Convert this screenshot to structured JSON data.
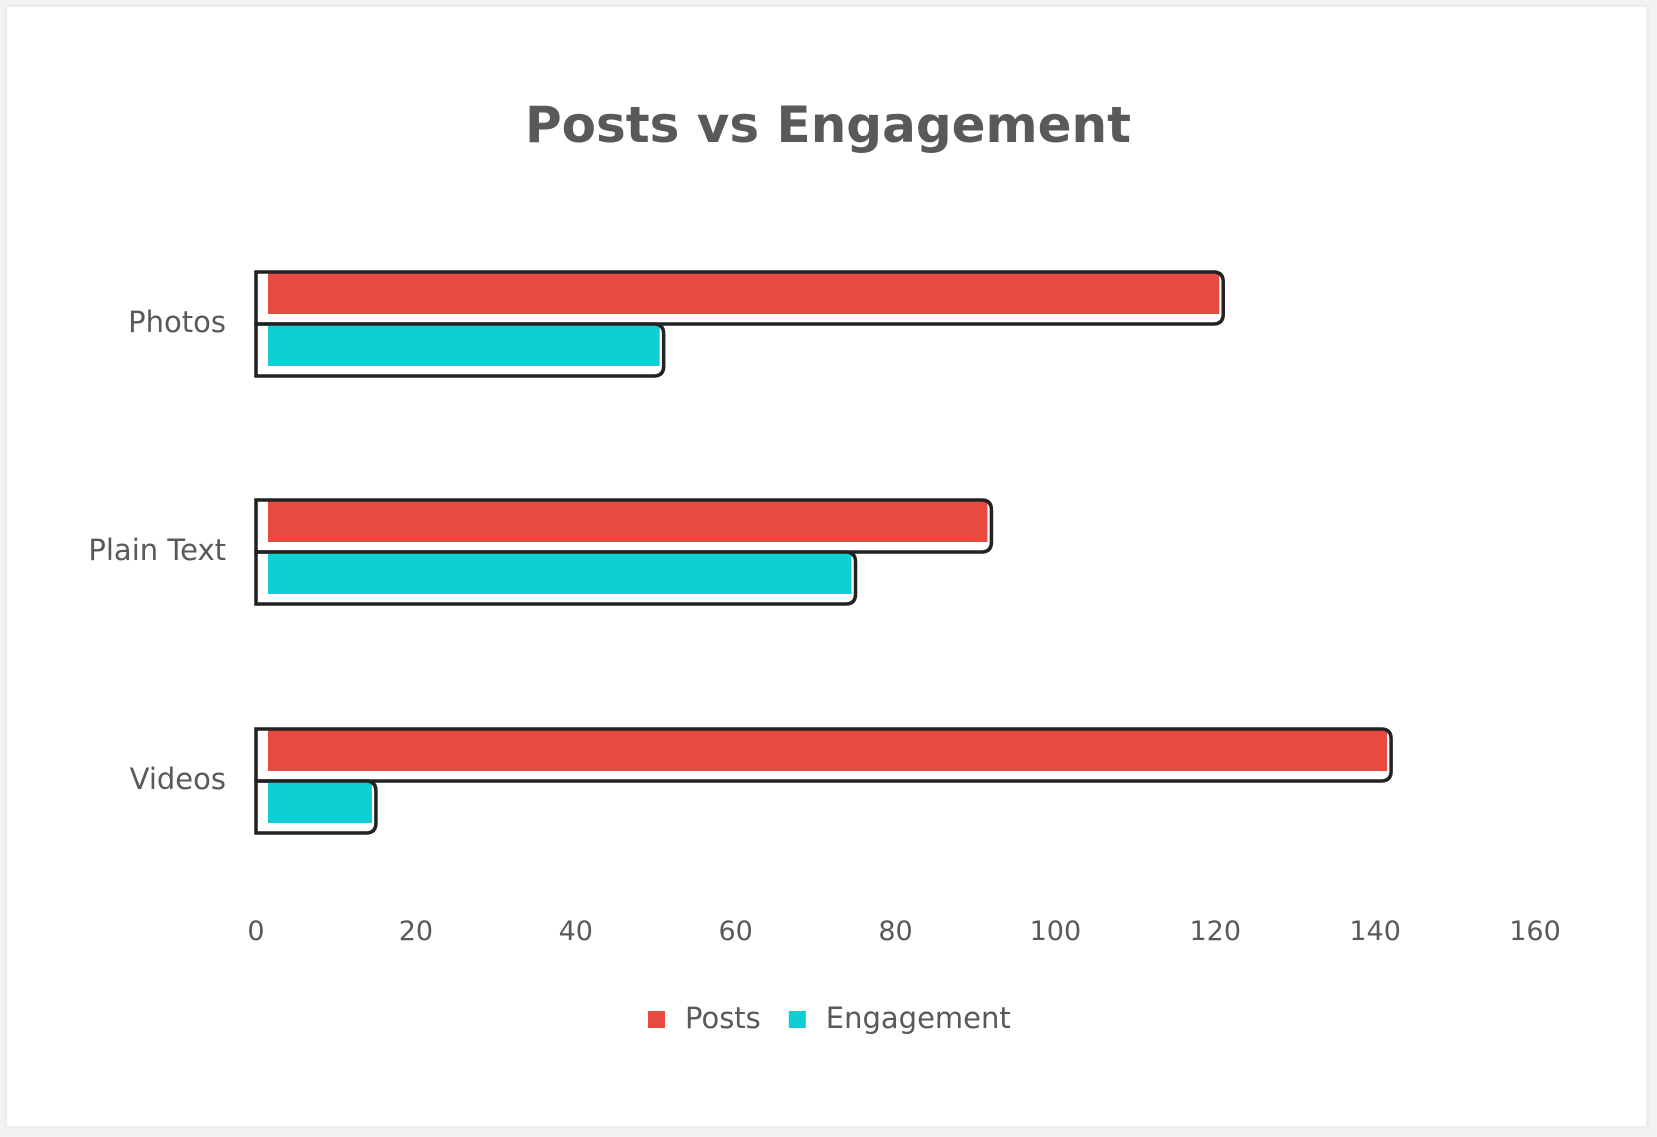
{
  "chart_data": {
    "type": "bar",
    "orientation": "horizontal",
    "title": "Posts vs Engagement",
    "xlabel": "",
    "ylabel": "",
    "categories": [
      "Photos",
      "Plain Text",
      "Videos"
    ],
    "series": [
      {
        "name": "Posts",
        "color": "#e84a42",
        "values": [
          121,
          92,
          142
        ]
      },
      {
        "name": "Engagement",
        "color": "#0ecfd4",
        "values": [
          51,
          75,
          15
        ]
      }
    ],
    "xlim": [
      0,
      160
    ],
    "xticks": [
      "0",
      "20",
      "40",
      "60",
      "80",
      "100",
      "120",
      "140",
      "160"
    ],
    "grid": false,
    "legend_position": "bottom",
    "outline_color": "#222222"
  }
}
